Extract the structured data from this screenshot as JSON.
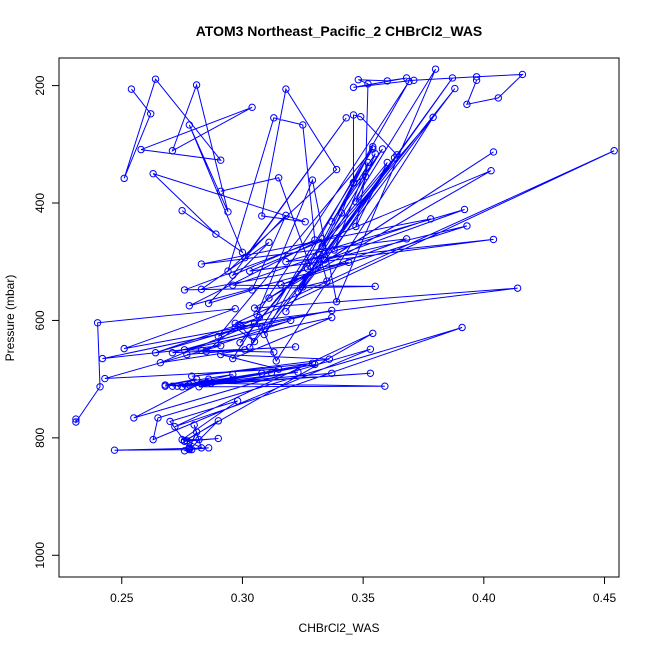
{
  "chart_data": {
    "type": "line",
    "title": "ATOM3 Northeast_Pacific_2 CHBrCl2_WAS",
    "xlabel": "CHBrCl2_WAS",
    "ylabel": "Pressure (mbar)",
    "xlim": [
      0.224,
      0.456
    ],
    "ylim": [
      1037,
      153
    ],
    "y_reversed": true,
    "x_ticks": [
      0.25,
      0.3,
      0.35,
      0.4,
      0.45
    ],
    "x_tick_labels": [
      "0.25",
      "0.30",
      "0.35",
      "0.40",
      "0.45"
    ],
    "y_ticks": [
      200,
      400,
      600,
      800,
      1000
    ],
    "y_tick_labels": [
      "200",
      "400",
      "600",
      "800",
      "1000"
    ],
    "grid": false,
    "legend": "none",
    "color": "#0000ff",
    "marker": "open-circle",
    "series": [
      {
        "points": [
          [
            0.231,
            768
          ],
          [
            0.231,
            773
          ],
          [
            0.241,
            713
          ],
          [
            0.24,
            604
          ],
          [
            0.297,
            580
          ],
          [
            0.251,
            648
          ],
          [
            0.337,
            583
          ],
          [
            0.242,
            665
          ],
          [
            0.291,
            643
          ],
          [
            0.243,
            699
          ],
          [
            0.315,
            683
          ],
          [
            0.291,
            658
          ],
          [
            0.336,
            666
          ],
          [
            0.279,
            695
          ],
          [
            0.329,
            673
          ],
          [
            0.283,
            708
          ],
          [
            0.337,
            690
          ],
          [
            0.273,
            712
          ],
          [
            0.33,
            675
          ],
          [
            0.287,
            707
          ],
          [
            0.359,
            712
          ],
          [
            0.282,
            713
          ],
          [
            0.323,
            688
          ],
          [
            0.275,
            713
          ],
          [
            0.312,
            689
          ],
          [
            0.278,
            710
          ],
          [
            0.353,
            690
          ],
          [
            0.277,
            712
          ],
          [
            0.308,
            690
          ],
          [
            0.271,
            712
          ],
          [
            0.296,
            700
          ],
          [
            0.268,
            712
          ],
          [
            0.281,
            700
          ],
          [
            0.268,
            710
          ],
          [
            0.296,
            692
          ],
          [
            0.275,
            713
          ],
          [
            0.286,
            700
          ],
          [
            0.255,
            766
          ],
          [
            0.353,
            649
          ],
          [
            0.263,
            803
          ],
          [
            0.265,
            766
          ],
          [
            0.391,
            612
          ],
          [
            0.272,
            781
          ],
          [
            0.354,
            622
          ],
          [
            0.276,
            805
          ],
          [
            0.27,
            772
          ],
          [
            0.298,
            737
          ],
          [
            0.275,
            803
          ],
          [
            0.282,
            803
          ],
          [
            0.28,
            778
          ],
          [
            0.283,
            817
          ],
          [
            0.277,
            805
          ],
          [
            0.29,
            801
          ],
          [
            0.276,
            806
          ],
          [
            0.29,
            771
          ],
          [
            0.278,
            820
          ],
          [
            0.286,
            817
          ],
          [
            0.247,
            821
          ],
          [
            0.279,
            820
          ],
          [
            0.276,
            822
          ],
          [
            0.278,
            816
          ],
          [
            0.281,
            790
          ],
          [
            0.278,
            818
          ]
        ]
      },
      {
        "points": [
          [
            0.254,
            206
          ],
          [
            0.262,
            248
          ],
          [
            0.251,
            358
          ],
          [
            0.264,
            189
          ],
          [
            0.291,
            327
          ],
          [
            0.258,
            309
          ],
          [
            0.304,
            237
          ],
          [
            0.271,
            311
          ],
          [
            0.281,
            199
          ],
          [
            0.294,
            415
          ],
          [
            0.278,
            267
          ],
          [
            0.3,
            484
          ],
          [
            0.275,
            413
          ],
          [
            0.289,
            453
          ],
          [
            0.263,
            350
          ],
          [
            0.326,
            432
          ],
          [
            0.308,
            422
          ],
          [
            0.318,
            206
          ],
          [
            0.339,
            343
          ],
          [
            0.294,
            516
          ],
          [
            0.313,
            255
          ],
          [
            0.325,
            267
          ],
          [
            0.33,
            463
          ],
          [
            0.296,
            523
          ],
          [
            0.343,
            255
          ],
          [
            0.301,
            493
          ],
          [
            0.318,
            421
          ],
          [
            0.304,
            548
          ],
          [
            0.286,
            571
          ],
          [
            0.311,
            467
          ],
          [
            0.283,
            547
          ],
          [
            0.344,
            501
          ],
          [
            0.278,
            575
          ],
          [
            0.333,
            461
          ],
          [
            0.276,
            548
          ],
          [
            0.355,
            542
          ],
          [
            0.296,
            540
          ],
          [
            0.378,
            427
          ],
          [
            0.283,
            504
          ],
          [
            0.368,
            461
          ],
          [
            0.316,
            539
          ],
          [
            0.393,
            439
          ],
          [
            0.334,
            497
          ],
          [
            0.392,
            411
          ],
          [
            0.318,
            500
          ],
          [
            0.404,
            462
          ],
          [
            0.303,
            516
          ],
          [
            0.403,
            345
          ],
          [
            0.311,
            562
          ],
          [
            0.404,
            313
          ],
          [
            0.305,
            579
          ],
          [
            0.414,
            545
          ],
          [
            0.297,
            605
          ],
          [
            0.454,
            311
          ],
          [
            0.29,
            627
          ],
          [
            0.354,
            308
          ],
          [
            0.303,
            646
          ],
          [
            0.388,
            205
          ],
          [
            0.318,
            585
          ],
          [
            0.387,
            187
          ],
          [
            0.323,
            551
          ],
          [
            0.38,
            172
          ],
          [
            0.339,
            568
          ],
          [
            0.329,
            361
          ],
          [
            0.306,
            590
          ],
          [
            0.369,
            193
          ],
          [
            0.309,
            624
          ],
          [
            0.363,
            323
          ],
          [
            0.299,
            638
          ],
          [
            0.379,
            254
          ],
          [
            0.314,
            669
          ],
          [
            0.308,
            611
          ],
          [
            0.299,
            608
          ],
          [
            0.305,
            636
          ],
          [
            0.297,
            612
          ],
          [
            0.285,
            653
          ],
          [
            0.322,
            645
          ],
          [
            0.271,
            655
          ],
          [
            0.32,
            600
          ],
          [
            0.283,
            651
          ],
          [
            0.313,
            654
          ],
          [
            0.276,
            650
          ],
          [
            0.337,
            595
          ],
          [
            0.296,
            665
          ],
          [
            0.307,
            595
          ],
          [
            0.264,
            655
          ],
          [
            0.305,
            605
          ],
          [
            0.266,
            672
          ],
          [
            0.301,
            650
          ],
          [
            0.277,
            658
          ]
        ]
      },
      {
        "points": [
          [
            0.291,
            380
          ],
          [
            0.315,
            357
          ],
          [
            0.328,
            507
          ],
          [
            0.332,
            488
          ],
          [
            0.335,
            533
          ],
          [
            0.325,
            543
          ],
          [
            0.341,
            417
          ],
          [
            0.346,
            366
          ],
          [
            0.327,
            512
          ],
          [
            0.354,
            304
          ],
          [
            0.333,
            474
          ],
          [
            0.358,
            308
          ],
          [
            0.337,
            432
          ],
          [
            0.355,
            316
          ],
          [
            0.347,
            398
          ],
          [
            0.36,
            331
          ],
          [
            0.347,
            440
          ],
          [
            0.352,
            331
          ],
          [
            0.338,
            480
          ],
          [
            0.364,
            318
          ],
          [
            0.349,
            253
          ],
          [
            0.346,
            250
          ],
          [
            0.346,
            365
          ],
          [
            0.351,
            355
          ],
          [
            0.352,
            197
          ],
          [
            0.348,
            190
          ],
          [
            0.36,
            192
          ],
          [
            0.368,
            187
          ],
          [
            0.346,
            203
          ],
          [
            0.371,
            191
          ],
          [
            0.397,
            185
          ],
          [
            0.416,
            181
          ],
          [
            0.406,
            221
          ],
          [
            0.393,
            232
          ],
          [
            0.397,
            191
          ]
        ]
      }
    ]
  }
}
